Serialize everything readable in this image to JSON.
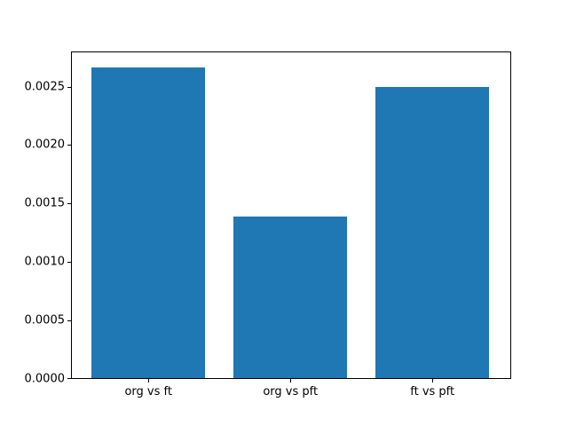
{
  "chart_data": {
    "type": "bar",
    "title": "",
    "xlabel": "",
    "ylabel": "",
    "categories": [
      "org vs ft",
      "org vs pft",
      "ft vs pft"
    ],
    "values": [
      0.00267,
      0.00139,
      0.0025
    ],
    "ytick_labels": [
      "0.0000",
      "0.0005",
      "0.0010",
      "0.0015",
      "0.0020",
      "0.0025"
    ],
    "ytick_values": [
      0.0,
      0.0005,
      0.001,
      0.0015,
      0.002,
      0.0025
    ],
    "ylim": [
      0,
      0.0028
    ],
    "xlim": [
      -0.545,
      2.555
    ],
    "bar_width_data_units": 0.8,
    "bar_color": "#1f77b4",
    "grid": false,
    "legend_position": "none",
    "background_color": "#ffffff",
    "axes_border_color": "#000000"
  }
}
